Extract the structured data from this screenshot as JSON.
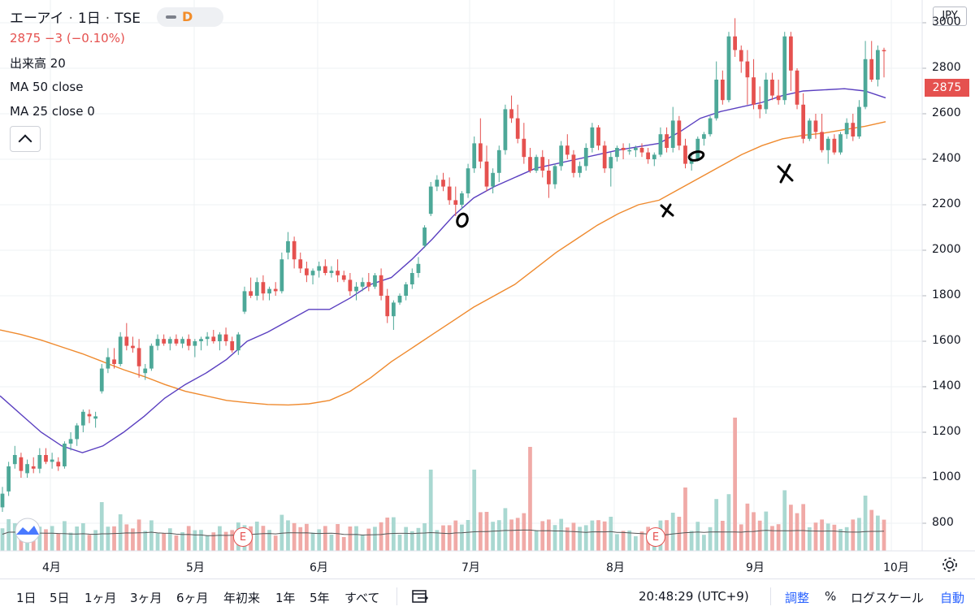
{
  "header": {
    "symbol": "エーアイ",
    "interval": "1日",
    "exchange": "TSE",
    "period_badge": "D",
    "last_price": "2875",
    "change": "−3",
    "change_pct": "(−0.10%)",
    "volume_indicator": "出来高 20",
    "ma50": "MA 50 close",
    "ma25": "MA 25 close 0",
    "currency": "JPY"
  },
  "toolbar": {
    "ranges": [
      "1日",
      "5日",
      "1ヶ月",
      "3ヶ月",
      "6ヶ月",
      "年初来",
      "1年",
      "5年",
      "すべて"
    ],
    "time": "20:48:29 (UTC+9)",
    "adjust": "調整",
    "percent": "%",
    "log_scale": "ログスケール",
    "auto": "自動"
  },
  "events": [
    "E",
    "E"
  ],
  "colors": {
    "up": "#4da898",
    "down": "#e5514f",
    "up_vol": "#a9d8d1",
    "down_vol": "#f0aaa7",
    "ma25": "#ef8a2e",
    "ma50": "#5a3fc0",
    "vol_ma": "#555555"
  },
  "icons": [
    "tradingview-logo-icon",
    "gear-icon",
    "calendar-goto-icon",
    "collapse-chevron-icon"
  ],
  "chart_data": {
    "type": "candlestick",
    "x_axis_labels": [
      "4月",
      "5月",
      "6月",
      "7月",
      "8月",
      "9月",
      "10月"
    ],
    "y_axis_ticks": [
      800,
      1000,
      1200,
      1400,
      1600,
      1800,
      2000,
      2200,
      2400,
      2600,
      2800,
      3000
    ],
    "ylim": [
      720,
      3260
    ],
    "last_price": 2875,
    "candles": [
      [
        870,
        960,
        850,
        930
      ],
      [
        940,
        1070,
        920,
        1050
      ],
      [
        1060,
        1140,
        1040,
        1100
      ],
      [
        1090,
        1110,
        1000,
        1030
      ],
      [
        1020,
        1080,
        1000,
        1060
      ],
      [
        1050,
        1090,
        1020,
        1040
      ],
      [
        1040,
        1130,
        1020,
        1100
      ],
      [
        1100,
        1130,
        1060,
        1070
      ],
      [
        1070,
        1110,
        1040,
        1080
      ],
      [
        1070,
        1090,
        1030,
        1050
      ],
      [
        1050,
        1160,
        1040,
        1150
      ],
      [
        1150,
        1200,
        1120,
        1170
      ],
      [
        1170,
        1240,
        1140,
        1230
      ],
      [
        1230,
        1300,
        1200,
        1290
      ],
      [
        1280,
        1300,
        1240,
        1270
      ],
      [
        1260,
        1290,
        1220,
        1270
      ],
      [
        1380,
        1500,
        1370,
        1480
      ],
      [
        1480,
        1570,
        1460,
        1530
      ],
      [
        1520,
        1570,
        1480,
        1500
      ],
      [
        1500,
        1640,
        1490,
        1620
      ],
      [
        1620,
        1680,
        1560,
        1580
      ],
      [
        1580,
        1620,
        1550,
        1570
      ],
      [
        1570,
        1610,
        1440,
        1490
      ],
      [
        1460,
        1500,
        1430,
        1480
      ],
      [
        1480,
        1590,
        1470,
        1580
      ],
      [
        1580,
        1630,
        1560,
        1610
      ],
      [
        1610,
        1630,
        1580,
        1590
      ],
      [
        1590,
        1620,
        1560,
        1610
      ],
      [
        1610,
        1630,
        1580,
        1590
      ],
      [
        1590,
        1620,
        1570,
        1610
      ],
      [
        1610,
        1630,
        1560,
        1580
      ],
      [
        1580,
        1610,
        1530,
        1600
      ],
      [
        1600,
        1620,
        1560,
        1610
      ],
      [
        1610,
        1640,
        1580,
        1620
      ],
      [
        1620,
        1650,
        1590,
        1600
      ],
      [
        1600,
        1640,
        1560,
        1630
      ],
      [
        1630,
        1660,
        1580,
        1600
      ],
      [
        1600,
        1620,
        1550,
        1560
      ],
      [
        1560,
        1640,
        1540,
        1630
      ],
      [
        1730,
        1840,
        1720,
        1820
      ],
      [
        1820,
        1880,
        1790,
        1800
      ],
      [
        1800,
        1880,
        1780,
        1860
      ],
      [
        1860,
        1890,
        1780,
        1810
      ],
      [
        1810,
        1840,
        1780,
        1830
      ],
      [
        1830,
        1860,
        1800,
        1820
      ],
      [
        1820,
        1990,
        1810,
        1960
      ],
      [
        1990,
        2080,
        1960,
        2040
      ],
      [
        2040,
        2060,
        1920,
        1960
      ],
      [
        1960,
        1990,
        1900,
        1920
      ],
      [
        1920,
        1950,
        1860,
        1890
      ],
      [
        1890,
        1920,
        1850,
        1910
      ],
      [
        1910,
        1950,
        1880,
        1930
      ],
      [
        1930,
        1960,
        1890,
        1900
      ],
      [
        1900,
        1930,
        1880,
        1910
      ],
      [
        1910,
        1960,
        1860,
        1890
      ],
      [
        1890,
        1910,
        1860,
        1870
      ],
      [
        1870,
        1900,
        1800,
        1820
      ],
      [
        1820,
        1860,
        1780,
        1840
      ],
      [
        1840,
        1880,
        1820,
        1860
      ],
      [
        1860,
        1900,
        1820,
        1840
      ],
      [
        1840,
        1900,
        1830,
        1890
      ],
      [
        1890,
        1920,
        1780,
        1800
      ],
      [
        1800,
        1830,
        1680,
        1710
      ],
      [
        1710,
        1780,
        1650,
        1770
      ],
      [
        1770,
        1810,
        1760,
        1800
      ],
      [
        1800,
        1860,
        1780,
        1850
      ],
      [
        1850,
        1920,
        1830,
        1900
      ],
      [
        1900,
        1970,
        1880,
        1940
      ],
      [
        2020,
        2110,
        2010,
        2100
      ],
      [
        2160,
        2300,
        2150,
        2280
      ],
      [
        2280,
        2330,
        2260,
        2310
      ],
      [
        2310,
        2340,
        2260,
        2280
      ],
      [
        2280,
        2320,
        2200,
        2220
      ],
      [
        2220,
        2280,
        2150,
        2200
      ],
      [
        2200,
        2260,
        2180,
        2250
      ],
      [
        2250,
        2380,
        2230,
        2360
      ],
      [
        2360,
        2500,
        2340,
        2470
      ],
      [
        2470,
        2580,
        2360,
        2390
      ],
      [
        2390,
        2460,
        2260,
        2280
      ],
      [
        2280,
        2360,
        2250,
        2340
      ],
      [
        2340,
        2460,
        2300,
        2440
      ],
      [
        2440,
        2640,
        2420,
        2620
      ],
      [
        2620,
        2680,
        2560,
        2580
      ],
      [
        2580,
        2640,
        2470,
        2490
      ],
      [
        2490,
        2560,
        2380,
        2410
      ],
      [
        2410,
        2450,
        2340,
        2350
      ],
      [
        2350,
        2420,
        2340,
        2410
      ],
      [
        2410,
        2440,
        2320,
        2350
      ],
      [
        2350,
        2400,
        2230,
        2290
      ],
      [
        2290,
        2380,
        2270,
        2370
      ],
      [
        2370,
        2480,
        2350,
        2460
      ],
      [
        2460,
        2510,
        2400,
        2420
      ],
      [
        2420,
        2440,
        2320,
        2340
      ],
      [
        2340,
        2390,
        2320,
        2370
      ],
      [
        2370,
        2470,
        2350,
        2450
      ],
      [
        2450,
        2560,
        2430,
        2540
      ],
      [
        2540,
        2550,
        2440,
        2460
      ],
      [
        2460,
        2480,
        2340,
        2360
      ],
      [
        2360,
        2430,
        2280,
        2410
      ],
      [
        2410,
        2460,
        2390,
        2450
      ],
      [
        2450,
        2470,
        2400,
        2440
      ],
      [
        2440,
        2470,
        2420,
        2440
      ],
      [
        2440,
        2460,
        2410,
        2450
      ],
      [
        2450,
        2470,
        2410,
        2430
      ],
      [
        2430,
        2450,
        2380,
        2400
      ],
      [
        2400,
        2430,
        2370,
        2420
      ],
      [
        2420,
        2540,
        2410,
        2510
      ],
      [
        2510,
        2540,
        2430,
        2450
      ],
      [
        2450,
        2630,
        2430,
        2570
      ],
      [
        2570,
        2590,
        2440,
        2460
      ],
      [
        2460,
        2490,
        2360,
        2380
      ],
      [
        2380,
        2420,
        2350,
        2400
      ],
      [
        2400,
        2500,
        2390,
        2490
      ],
      [
        2490,
        2520,
        2460,
        2510
      ],
      [
        2510,
        2590,
        2500,
        2580
      ],
      [
        2580,
        2830,
        2570,
        2750
      ],
      [
        2750,
        2790,
        2640,
        2660
      ],
      [
        2660,
        2960,
        2650,
        2940
      ],
      [
        2940,
        3020,
        2850,
        2880
      ],
      [
        2880,
        2900,
        2780,
        2830
      ],
      [
        2830,
        2880,
        2640,
        2760
      ],
      [
        2760,
        2840,
        2620,
        2640
      ],
      [
        2640,
        2720,
        2580,
        2620
      ],
      [
        2620,
        2780,
        2600,
        2750
      ],
      [
        2750,
        2780,
        2660,
        2680
      ],
      [
        2680,
        2750,
        2640,
        2660
      ],
      [
        2660,
        2960,
        2640,
        2940
      ],
      [
        2940,
        2960,
        2700,
        2790
      ],
      [
        2790,
        2800,
        2620,
        2640
      ],
      [
        2640,
        2690,
        2470,
        2490
      ],
      [
        2490,
        2580,
        2480,
        2570
      ],
      [
        2570,
        2600,
        2490,
        2520
      ],
      [
        2520,
        2600,
        2430,
        2440
      ],
      [
        2440,
        2500,
        2380,
        2490
      ],
      [
        2490,
        2510,
        2420,
        2430
      ],
      [
        2430,
        2520,
        2420,
        2510
      ],
      [
        2510,
        2580,
        2490,
        2560
      ],
      [
        2560,
        2600,
        2480,
        2500
      ],
      [
        2500,
        2660,
        2490,
        2630
      ],
      [
        2630,
        2920,
        2620,
        2840
      ],
      [
        2840,
        2920,
        2740,
        2750
      ],
      [
        2750,
        2900,
        2720,
        2880
      ],
      [
        2880,
        2890,
        2760,
        2875
      ]
    ],
    "ma25": [
      1650,
      1630,
      1605,
      1575,
      1545,
      1510,
      1475,
      1445,
      1410,
      1380,
      1360,
      1340,
      1330,
      1322,
      1320,
      1325,
      1340,
      1380,
      1440,
      1510,
      1570,
      1630,
      1690,
      1750,
      1800,
      1850,
      1920,
      1990,
      2050,
      2110,
      2160,
      2200,
      2220,
      2270,
      2320,
      2370,
      2420,
      2460,
      2490,
      2505,
      2515,
      2530,
      2545,
      2565
    ],
    "ma50": [
      1360,
      1280,
      1200,
      1140,
      1110,
      1140,
      1200,
      1270,
      1350,
      1410,
      1460,
      1520,
      1600,
      1640,
      1690,
      1740,
      1740,
      1790,
      1850,
      1880,
      1960,
      2050,
      2150,
      2230,
      2280,
      2320,
      2360,
      2380,
      2400,
      2420,
      2440,
      2455,
      2470,
      2520,
      2580,
      2610,
      2630,
      2650,
      2680,
      2700,
      2705,
      2710,
      2700,
      2670
    ],
    "volume_labels_note": "",
    "grid": true,
    "legend_placement": "top-left"
  }
}
